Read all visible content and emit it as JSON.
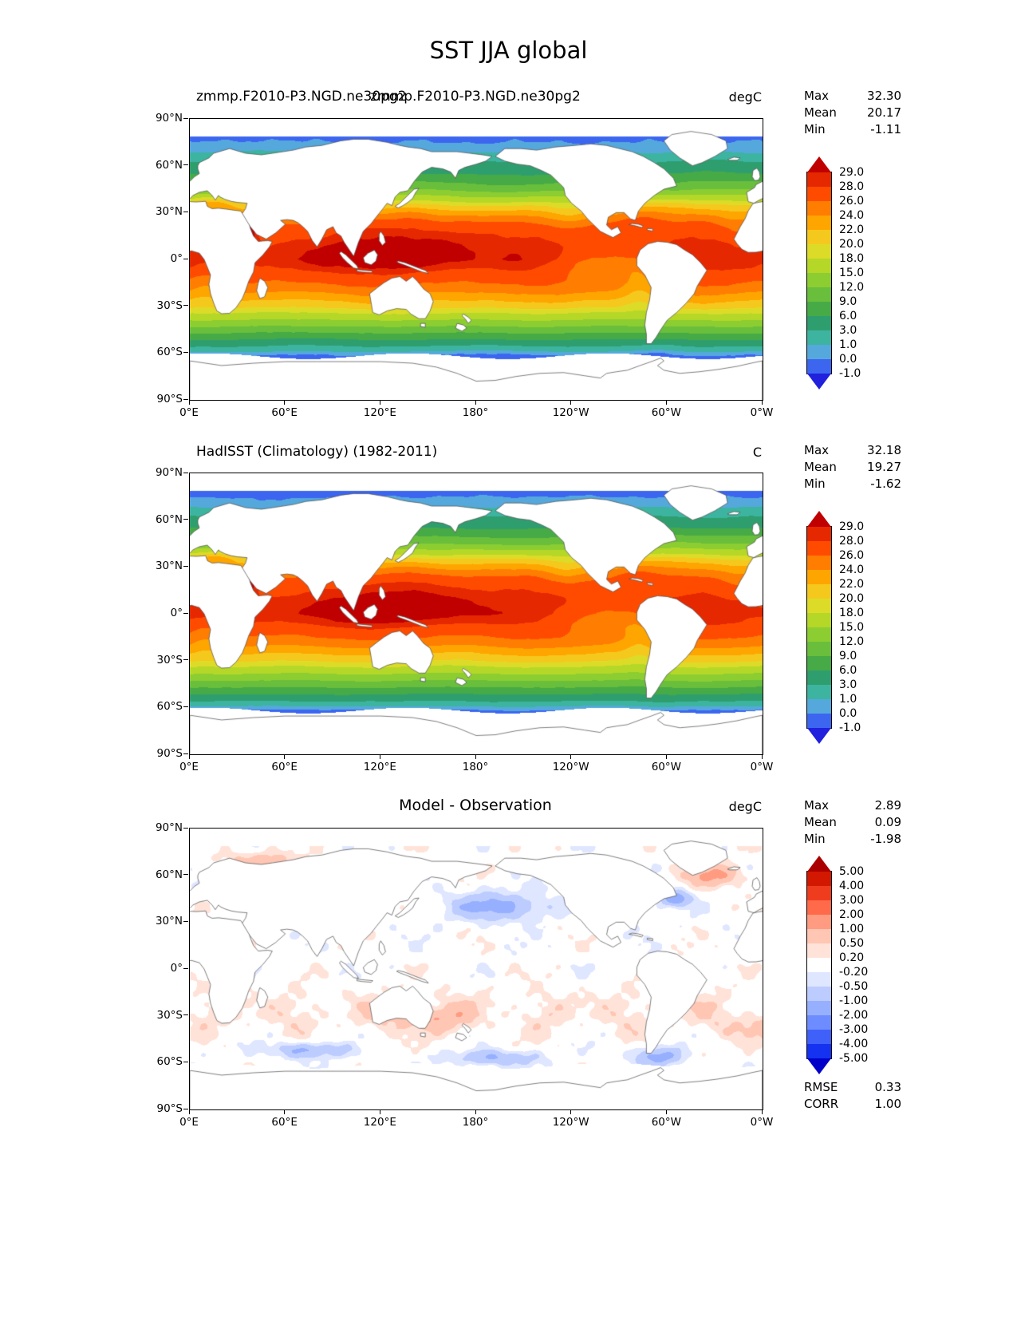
{
  "labels": {
    "max": "Max",
    "mean": "Mean",
    "min": "Min",
    "rmse": "RMSE",
    "corr": "CORR"
  },
  "chart_data": {
    "type": "heatmap",
    "subtype": "global filled-contour SST maps (3 stacked panels)",
    "figure_title": "SST JJA global",
    "variable": "Sea surface temperature",
    "season": "JJA",
    "projection": "equirectangular, longitude axis 0°E → 180° → 0°W (Pacific-centered), latitude 90°N → 90°S",
    "lat_ticks": [
      "90°N",
      "60°N",
      "30°N",
      "0°",
      "30°S",
      "60°S",
      "90°S"
    ],
    "lon_ticks": [
      "0°E",
      "60°E",
      "120°E",
      "180°",
      "120°W",
      "60°W",
      "0°W"
    ],
    "panels": [
      {
        "title": "zmmp.F2010-P3.NGD.ne30pg2",
        "note": "title string is rendered twice (left-aligned and centered) overlapping in the original image",
        "units": "degC",
        "stats": {
          "max": "32.30",
          "mean": "20.17",
          "min": "-1.11"
        },
        "colorbar": "sst"
      },
      {
        "title": "HadISST (Climatology) (1982-2011)",
        "units": "C",
        "stats": {
          "max": "32.18",
          "mean": "19.27",
          "min": "-1.62"
        },
        "colorbar": "sst"
      },
      {
        "title": "Model - Observation",
        "units": "degC",
        "stats": {
          "max": "2.89",
          "mean": "0.09",
          "min": "-1.98"
        },
        "rmse": "0.33",
        "corr": "1.00",
        "colorbar": "diff"
      }
    ],
    "colorbars": {
      "sst": {
        "tick_labels": [
          "29.0",
          "28.0",
          "26.0",
          "24.0",
          "22.0",
          "20.0",
          "18.0",
          "15.0",
          "12.0",
          "9.0",
          "6.0",
          "3.0",
          "1.0",
          "0.0",
          "-1.0"
        ],
        "levels_low_to_high": [
          -1,
          0,
          1,
          3,
          6,
          9,
          12,
          15,
          18,
          20,
          22,
          24,
          26,
          28,
          29
        ],
        "colors_low_to_high": [
          "#2020dd",
          "#3c66f0",
          "#55a8dc",
          "#3cb4a0",
          "#2f9e6e",
          "#46aa46",
          "#69be3c",
          "#8ccd32",
          "#b4d728",
          "#dcdc28",
          "#f5c81e",
          "#ffa500",
          "#ff7d00",
          "#ff4b00",
          "#e62800",
          "#c00000"
        ]
      },
      "diff": {
        "tick_labels": [
          "5.00",
          "4.00",
          "3.00",
          "2.00",
          "1.00",
          "0.50",
          "0.20",
          "-0.20",
          "-0.50",
          "-1.00",
          "-2.00",
          "-3.00",
          "-4.00",
          "-5.00"
        ],
        "levels_low_to_high": [
          -5,
          -4,
          -3,
          -2,
          -1,
          -0.5,
          -0.2,
          0.2,
          0.5,
          1,
          2,
          3,
          4,
          5
        ],
        "colors_low_to_high": [
          "#0000c8",
          "#1432f0",
          "#4060fa",
          "#6c8cff",
          "#96b0ff",
          "#bcccff",
          "#dfe6ff",
          "#ffffff",
          "#ffe3d9",
          "#ffc6b4",
          "#ff9b80",
          "#ff6a4b",
          "#f03c1e",
          "#d21800",
          "#aa0000"
        ]
      }
    }
  }
}
